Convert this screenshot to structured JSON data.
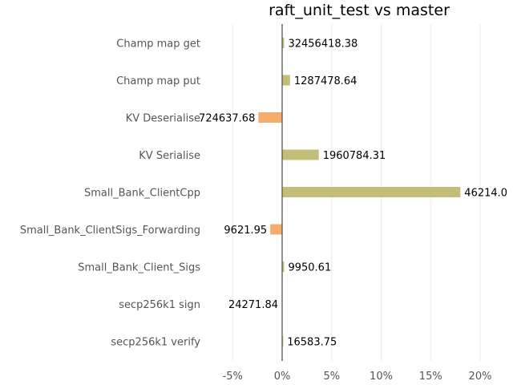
{
  "chart_data": {
    "type": "bar",
    "orientation": "horizontal",
    "title": "raft_unit_test vs master",
    "xlabel": "",
    "ylabel": "",
    "categories": [
      "Champ map get",
      "Champ map put",
      "KV Deserialise",
      "KV Serialise",
      "Small_Bank_ClientCpp",
      "Small_Bank_ClientSigs_Forwarding",
      "Small_Bank_Client_Sigs",
      "secp256k1 sign",
      "secp256k1 verify"
    ],
    "series": [
      {
        "values": [
          0.2,
          0.8,
          -2.4,
          3.7,
          18.0,
          -1.2,
          0.2,
          0.0,
          0.1
        ],
        "labels": [
          "32456418.38",
          "1287478.64",
          "724637.68",
          "1960784.31",
          "46214.0",
          "9621.95",
          "9950.61",
          "24271.84",
          "16583.75"
        ]
      }
    ],
    "positive_color": "#c2be78",
    "negative_color": "#f5ad6e",
    "xlim": [
      -6,
      21
    ],
    "xticks": [
      -5,
      0,
      5,
      10,
      15,
      20
    ],
    "xtick_labels": [
      "-5%",
      "0%",
      "5%",
      "10%",
      "15%",
      "20%"
    ],
    "grid": "vertical",
    "legend": "none"
  }
}
